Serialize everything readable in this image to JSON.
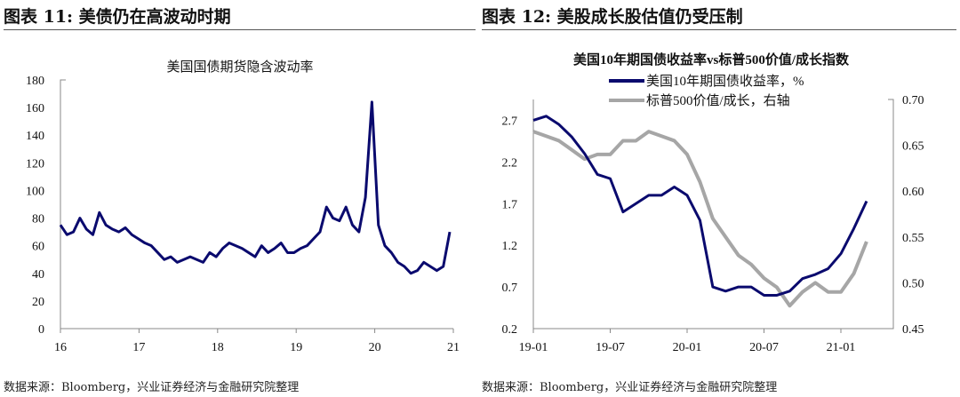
{
  "charts_headers": [
    {
      "label": "图表 11:  美债仍在高波动时期"
    },
    {
      "label": "图表 12:  美股成长股估值仍受压制"
    }
  ],
  "source": "数据来源：Bloomberg，兴业证券经济与金融研究院整理",
  "chart_data": [
    {
      "type": "line",
      "title": "美国国债期货隐含波动率",
      "xlabel": "",
      "ylabel": "",
      "ylim": [
        0,
        180
      ],
      "xlim": [
        16,
        21
      ],
      "yticks": [
        "0",
        "20",
        "40",
        "60",
        "80",
        "100",
        "120",
        "140",
        "160",
        "180"
      ],
      "xticks": [
        "16",
        "17",
        "18",
        "19",
        "20",
        "21"
      ],
      "series": [
        {
          "name": "美国国债期货隐含波动率",
          "color": "#0a0a6e",
          "values": [
            75,
            68,
            70,
            80,
            72,
            68,
            84,
            75,
            72,
            70,
            73,
            68,
            65,
            62,
            60,
            55,
            50,
            52,
            48,
            50,
            52,
            50,
            48,
            55,
            52,
            58,
            62,
            60,
            58,
            55,
            52,
            60,
            55,
            58,
            62,
            55,
            55,
            58,
            60,
            65,
            70,
            88,
            80,
            78,
            88,
            75,
            70,
            95,
            164,
            75,
            60,
            55,
            48,
            45,
            40,
            42,
            48,
            45,
            42,
            45,
            70
          ]
        }
      ]
    },
    {
      "type": "line",
      "title": "美国10年期国债收益率vs标普500价值/成长指数",
      "xlabel": "",
      "ylim": [
        0.2,
        2.95
      ],
      "y2lim": [
        0.45,
        0.7
      ],
      "xticks": [
        "19-01",
        "19-07",
        "20-01",
        "20-07",
        "21-01"
      ],
      "yticks": [
        "0.2",
        "0.7",
        "1.2",
        "1.7",
        "2.2",
        "2.7"
      ],
      "y2ticks": [
        "0.45",
        "0.50",
        "0.55",
        "0.60",
        "0.65",
        "0.70"
      ],
      "series": [
        {
          "name": "美国10年期国债收益率，%",
          "axis": "left",
          "color": "#0a0a6e",
          "values": [
            2.7,
            2.75,
            2.65,
            2.5,
            2.3,
            2.05,
            2.0,
            1.6,
            1.7,
            1.8,
            1.8,
            1.9,
            1.8,
            1.5,
            0.7,
            0.65,
            0.7,
            0.7,
            0.6,
            0.6,
            0.65,
            0.8,
            0.85,
            0.92,
            1.1,
            1.4,
            1.73
          ]
        },
        {
          "name": "标普500价值/成长，右轴",
          "axis": "right",
          "color": "#a6a6a6",
          "values": [
            0.665,
            0.66,
            0.655,
            0.645,
            0.635,
            0.64,
            0.64,
            0.655,
            0.655,
            0.665,
            0.66,
            0.655,
            0.64,
            0.61,
            0.57,
            0.55,
            0.53,
            0.52,
            0.505,
            0.495,
            0.475,
            0.49,
            0.5,
            0.49,
            0.49,
            0.51,
            0.545
          ]
        }
      ]
    }
  ]
}
